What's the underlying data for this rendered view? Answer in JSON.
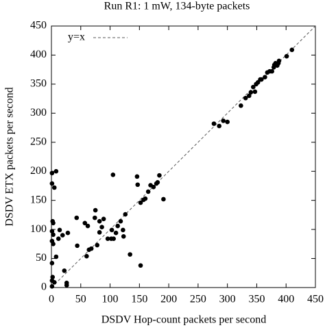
{
  "chart_data": {
    "type": "scatter",
    "title": "Run R1: 1 mW, 134-byte packets",
    "x_label": "DSDV Hop-count packets per second",
    "y_label": "DSDV ETX packets per second",
    "xlim": [
      0,
      450
    ],
    "ylim": [
      0,
      450
    ],
    "xticks": [
      0,
      50,
      100,
      150,
      200,
      250,
      300,
      350,
      400,
      450
    ],
    "yticks": [
      0,
      50,
      100,
      150,
      200,
      250,
      300,
      350,
      400,
      450
    ],
    "reference_line": {
      "name": "y=x",
      "style": "dashed",
      "color": "#555555"
    },
    "series": [
      {
        "color": "#000000",
        "x": [
          1,
          8,
          1,
          5,
          2,
          3,
          1,
          3,
          1,
          3,
          1,
          2,
          1,
          5,
          1,
          14,
          19,
          12,
          8,
          22,
          26,
          26,
          28,
          43,
          44,
          57,
          62,
          60,
          64,
          68,
          74,
          75,
          78,
          82,
          82,
          86,
          89,
          96,
          102,
          105,
          103,
          106,
          110,
          113,
          118,
          123,
          122,
          126,
          134,
          146,
          147,
          152,
          152,
          157,
          160,
          165,
          169,
          174,
          179,
          181,
          184,
          191,
          277,
          286,
          293,
          300,
          323,
          331,
          337,
          340,
          344,
          347,
          349,
          352,
          356,
          364,
          368,
          372,
          376,
          379,
          382,
          385,
          387,
          388,
          380,
          401,
          410,
          358
        ],
        "y": [
          197,
          200,
          179,
          172,
          114,
          111,
          97,
          91,
          80,
          75,
          42,
          18,
          12,
          9,
          2,
          99,
          90,
          84,
          53,
          29,
          8,
          4,
          94,
          120,
          72,
          111,
          106,
          54,
          65,
          67,
          120,
          133,
          73,
          95,
          114,
          104,
          118,
          84,
          84,
          194,
          99,
          84,
          94,
          106,
          114,
          88,
          99,
          126,
          57,
          191,
          177,
          38,
          146,
          151,
          153,
          165,
          176,
          173,
          179,
          181,
          193,
          152,
          282,
          278,
          287,
          285,
          313,
          326,
          330,
          336,
          345,
          337,
          350,
          353,
          358,
          362,
          370,
          372,
          372,
          379,
          386,
          382,
          386,
          390,
          383,
          398,
          409,
          358
        ]
      }
    ]
  }
}
